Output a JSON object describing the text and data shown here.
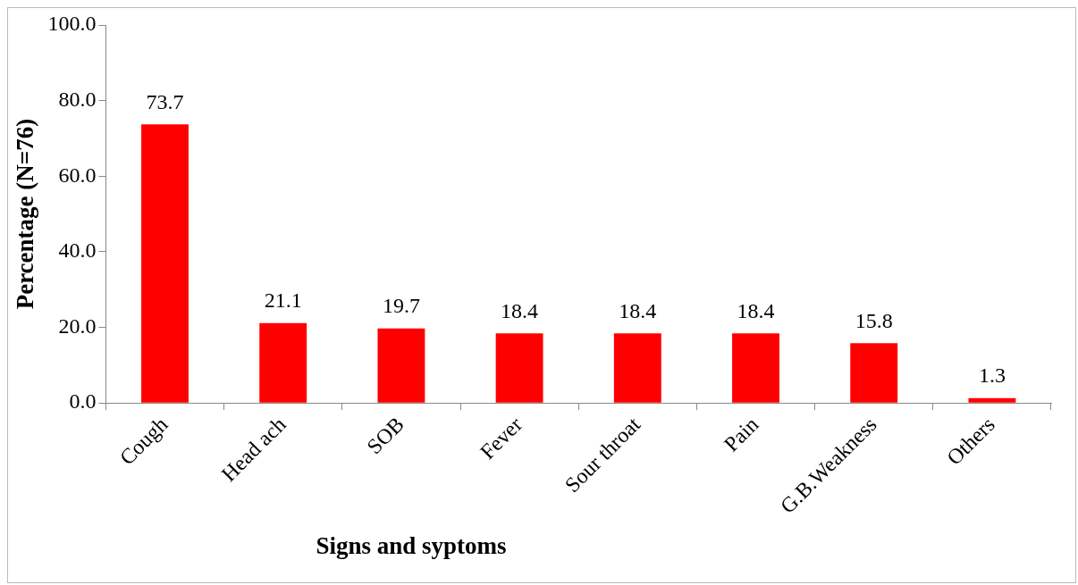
{
  "chart_data": {
    "type": "bar",
    "xlabel": "Signs and syptoms",
    "ylabel": "Percentage (N=76)",
    "categories": [
      "Cough",
      "Head ach",
      "SOB",
      "Fever",
      "Sour throat",
      "Pain",
      "G.B.Weakness",
      "Others"
    ],
    "values": [
      73.7,
      21.1,
      19.7,
      18.4,
      18.4,
      18.4,
      15.8,
      1.3
    ],
    "color": "#ff0000",
    "ylim": [
      0,
      100
    ],
    "yticks": [
      {
        "value": 0,
        "label": "0.0"
      },
      {
        "value": 20,
        "label": "20.0"
      },
      {
        "value": 40,
        "label": "40.0"
      },
      {
        "value": 60,
        "label": "60.0"
      },
      {
        "value": 80,
        "label": "80.0"
      },
      {
        "value": 100,
        "label": "100.0"
      }
    ],
    "data_labels": true,
    "grid": false,
    "legend": false
  }
}
